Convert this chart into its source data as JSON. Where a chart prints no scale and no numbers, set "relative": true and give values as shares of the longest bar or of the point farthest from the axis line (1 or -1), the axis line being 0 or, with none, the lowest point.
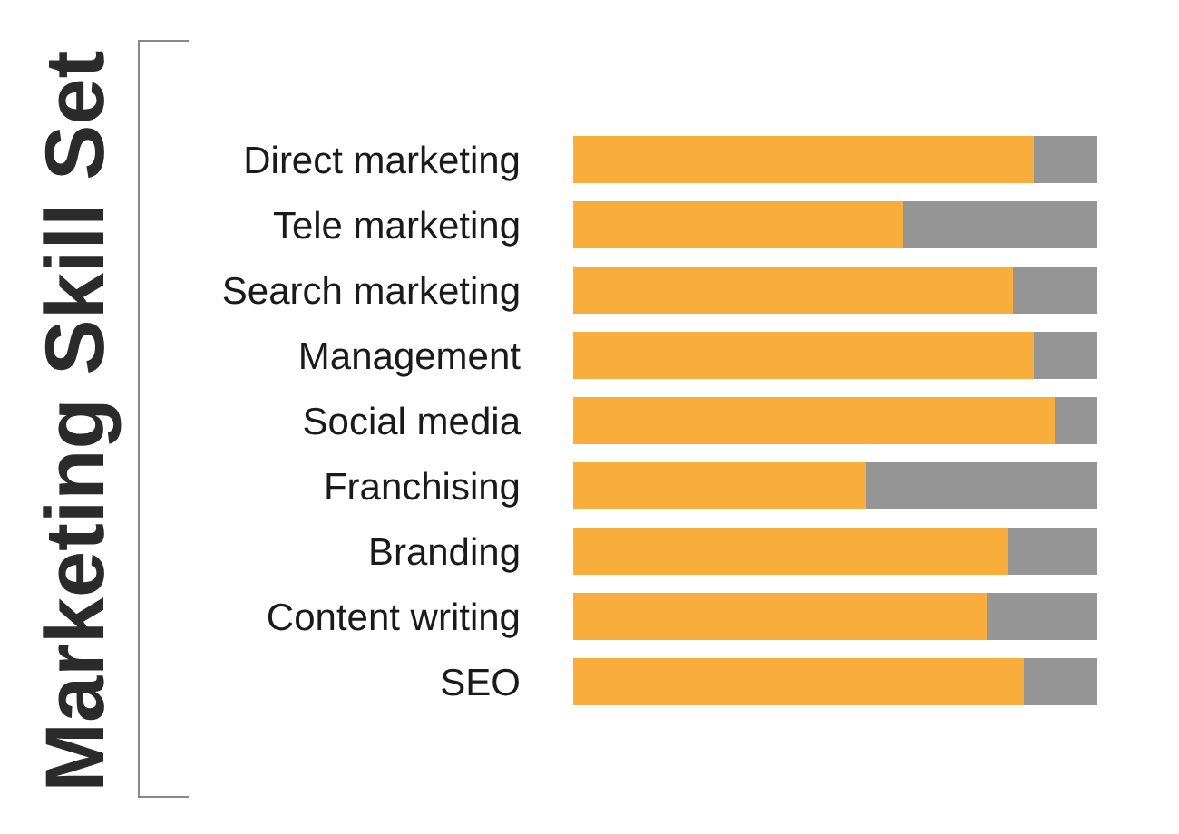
{
  "chart_data": {
    "type": "bar",
    "title": "Marketing Skill Set",
    "orientation": "horizontal",
    "stacked": true,
    "relative": true,
    "categories": [
      "Direct marketing",
      "Tele marketing",
      "Search marketing",
      "Management",
      "Social media",
      "Franchising",
      "Branding",
      "Content writing",
      "SEO"
    ],
    "series": [
      {
        "color": "#f9ad3a",
        "values": [
          0.88,
          0.63,
          0.84,
          0.88,
          0.92,
          0.56,
          0.83,
          0.79,
          0.86
        ]
      },
      {
        "color": "#959595",
        "values": [
          0.12,
          0.37,
          0.16,
          0.12,
          0.08,
          0.44,
          0.17,
          0.21,
          0.14
        ]
      }
    ]
  }
}
